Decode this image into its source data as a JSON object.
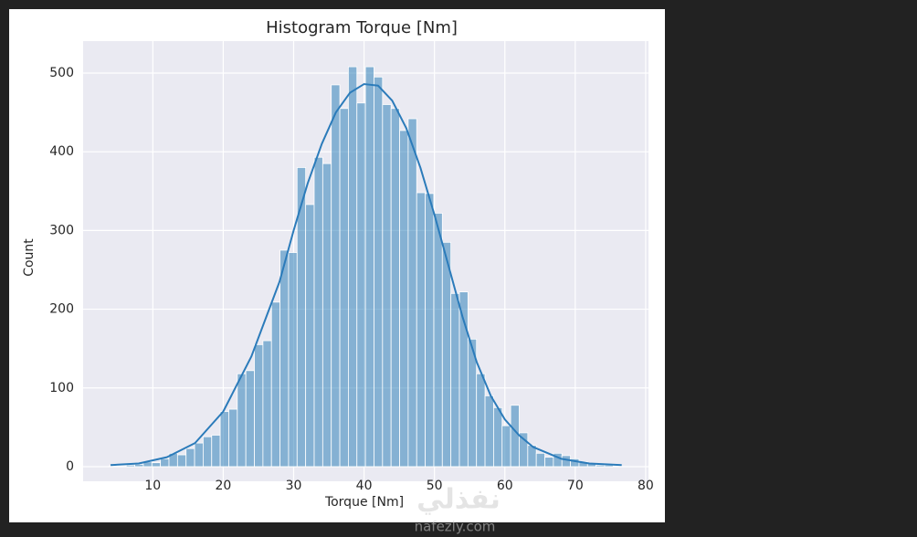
{
  "chart_data": {
    "type": "histogram",
    "title": "Histogram Torque [Nm]",
    "xlabel": "Torque [Nm]",
    "ylabel": "Count",
    "bins": [
      3.8,
      5.013,
      6.227,
      7.44,
      8.653,
      9.867,
      11.08,
      12.293,
      13.507,
      14.72,
      15.933,
      17.147,
      18.36,
      19.573,
      20.787,
      22.0,
      23.213,
      24.427,
      25.64,
      26.853,
      28.067,
      29.28,
      30.493,
      31.707,
      32.92,
      34.133,
      35.347,
      36.56,
      37.773,
      38.987,
      40.2,
      41.413,
      42.627,
      43.84,
      45.053,
      46.267,
      47.48,
      48.693,
      49.907,
      51.12,
      52.333,
      53.547,
      54.76,
      55.973,
      57.187,
      58.4,
      59.613,
      60.827,
      62.04,
      63.253,
      64.467,
      65.68,
      66.893,
      68.107,
      69.32,
      70.533,
      71.747,
      72.96,
      74.173,
      75.387,
      76.6
    ],
    "values": [
      1,
      1,
      2,
      3,
      6,
      5,
      10,
      17,
      15,
      23,
      30,
      38,
      40,
      70,
      73,
      118,
      122,
      155,
      160,
      209,
      275,
      272,
      380,
      333,
      393,
      385,
      485,
      455,
      508,
      462,
      508,
      495,
      460,
      455,
      427,
      442,
      348,
      347,
      322,
      285,
      220,
      222,
      162,
      118,
      90,
      75,
      52,
      78,
      43,
      27,
      17,
      12,
      17,
      14,
      10,
      6,
      4,
      2,
      2,
      1
    ],
    "color": "#1f77b4",
    "kde": {
      "x": [
        4,
        8,
        12,
        16,
        20,
        24,
        28,
        30,
        32,
        34,
        36,
        38,
        40,
        42,
        44,
        46,
        48,
        50,
        52,
        54,
        56,
        58,
        60,
        62,
        64,
        68,
        72,
        76.6
      ],
      "values": [
        2,
        4,
        12,
        30,
        70,
        140,
        235,
        300,
        360,
        410,
        450,
        475,
        486,
        484,
        465,
        430,
        380,
        320,
        255,
        190,
        133,
        90,
        60,
        40,
        25,
        10,
        4,
        2
      ],
      "color": "#2b7bba"
    },
    "xlim": [
      0.1,
      80.4
    ],
    "ylim": [
      -18.6,
      540.6
    ],
    "xticks": [
      10,
      20,
      30,
      40,
      50,
      60,
      70,
      80
    ],
    "yticks": [
      0,
      100,
      200,
      300,
      400,
      500
    ],
    "grid": true
  },
  "watermark": {
    "arabic": "نفذلي",
    "site": "nafezly.com"
  }
}
